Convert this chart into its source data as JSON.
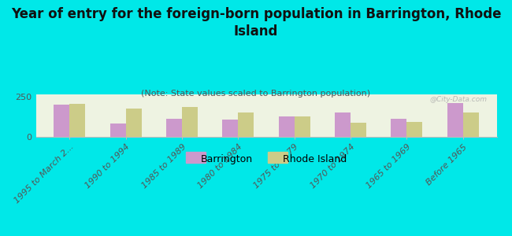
{
  "title": "Year of entry for the foreign-born population in Barrington, Rhode\nIsland",
  "subtitle": "(Note: State values scaled to Barrington population)",
  "categories": [
    "1995 to March 2...",
    "1990 to 1994",
    "1985 to 1989",
    "1980 to 1984",
    "1975 to 1979",
    "1970 to 1974",
    "1965 to 1969",
    "Before 1965"
  ],
  "barrington_values": [
    200,
    85,
    115,
    110,
    130,
    150,
    115,
    210
  ],
  "rhode_island_values": [
    205,
    175,
    185,
    150,
    130,
    90,
    95,
    150
  ],
  "barrington_color": "#cc99cc",
  "rhode_island_color": "#cccc88",
  "background_color": "#00e8e8",
  "plot_bg_color": "#eef3e2",
  "ylim": [
    0,
    265
  ],
  "ytick_val": 250,
  "bar_width": 0.28,
  "title_fontsize": 12,
  "subtitle_fontsize": 8,
  "tick_fontsize": 8,
  "legend_fontsize": 9,
  "watermark": "@City-Data.com"
}
